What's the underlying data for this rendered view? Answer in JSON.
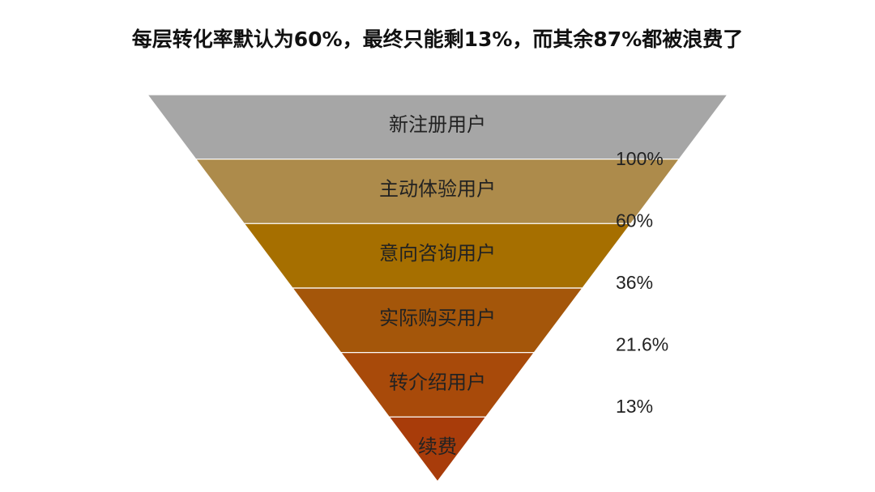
{
  "chart_data": {
    "type": "funnel",
    "title": "每层转化率默认为60%，最终只能剩13%，而其余87%都被浪费了",
    "categories": [
      "新注册用户",
      "主动体验用户",
      "意向咨询用户",
      "实际购买用户",
      "转介绍用户",
      "续费"
    ],
    "colors": [
      "#a6a6a6",
      "#ad8b4b",
      "#a66f00",
      "#a4560a",
      "#a84a0a",
      "#a83c0a"
    ],
    "rates": {
      "values": [
        100,
        60,
        36,
        21.6,
        13
      ],
      "value_labels": [
        "100%",
        "60%",
        "36%",
        "21.6%",
        "13%"
      ]
    }
  }
}
